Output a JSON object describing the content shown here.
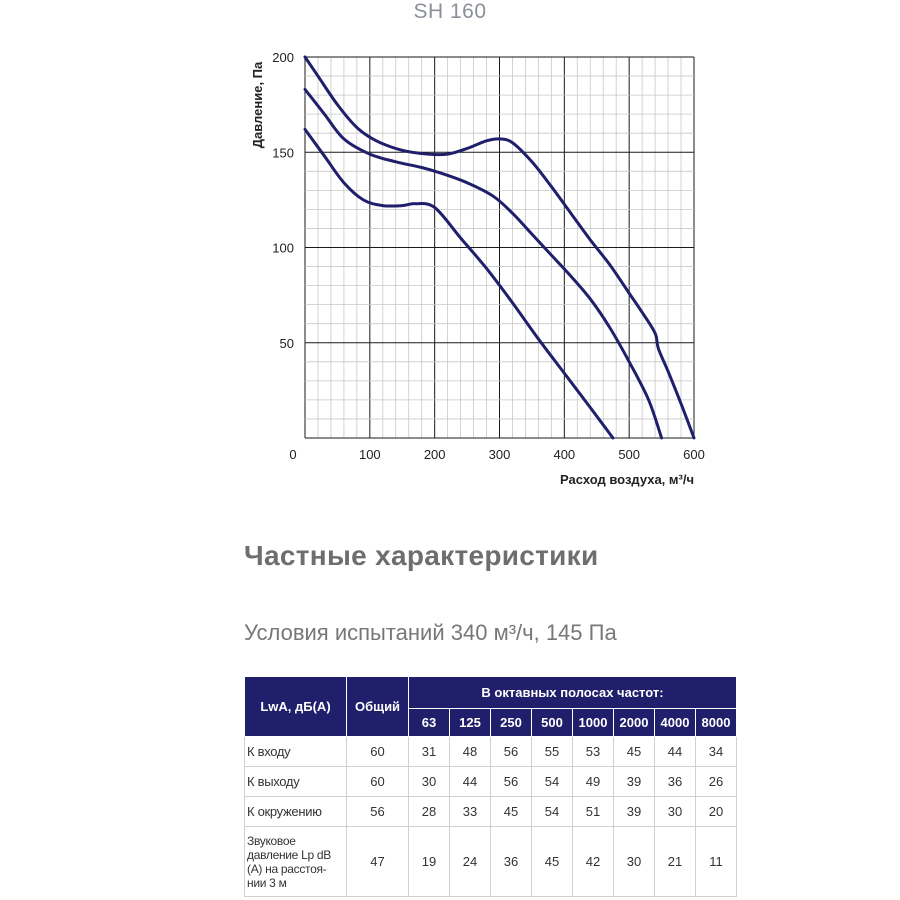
{
  "model_title": "SH 160",
  "chart_data": {
    "type": "line",
    "title": "",
    "xlabel": "Расход воздуха, м³/ч",
    "ylabel": "Давление, Па",
    "xlim": [
      0,
      600
    ],
    "ylim": [
      0,
      200
    ],
    "x_ticks": [
      "0",
      "100",
      "200",
      "300",
      "400",
      "500",
      "600"
    ],
    "y_ticks": [
      "50",
      "100",
      "150",
      "200"
    ],
    "grid": true,
    "line_color": "#1f1f6b",
    "series": [
      {
        "values": [
          [
            0,
            200
          ],
          [
            20,
            190
          ],
          [
            50,
            175
          ],
          [
            80,
            163
          ],
          [
            110,
            156
          ],
          [
            150,
            151
          ],
          [
            190,
            149
          ],
          [
            220,
            149
          ],
          [
            250,
            152
          ],
          [
            280,
            156
          ],
          [
            300,
            157
          ],
          [
            320,
            155
          ],
          [
            350,
            145
          ],
          [
            380,
            132
          ],
          [
            410,
            118
          ],
          [
            440,
            104
          ],
          [
            470,
            91
          ],
          [
            500,
            76
          ],
          [
            520,
            66
          ],
          [
            540,
            55
          ],
          [
            545,
            47
          ],
          [
            560,
            35
          ],
          [
            580,
            18
          ],
          [
            600,
            0
          ]
        ]
      },
      {
        "values": [
          [
            0,
            183
          ],
          [
            30,
            170
          ],
          [
            60,
            157
          ],
          [
            100,
            149
          ],
          [
            140,
            145
          ],
          [
            180,
            142
          ],
          [
            210,
            139
          ],
          [
            250,
            134
          ],
          [
            290,
            127
          ],
          [
            320,
            118
          ],
          [
            350,
            107
          ],
          [
            380,
            96
          ],
          [
            410,
            85
          ],
          [
            440,
            73
          ],
          [
            470,
            58
          ],
          [
            500,
            40
          ],
          [
            530,
            20
          ],
          [
            550,
            0
          ]
        ]
      },
      {
        "values": [
          [
            0,
            162
          ],
          [
            30,
            148
          ],
          [
            60,
            134
          ],
          [
            90,
            125
          ],
          [
            120,
            122
          ],
          [
            150,
            122
          ],
          [
            170,
            123
          ],
          [
            200,
            121
          ],
          [
            240,
            105
          ],
          [
            280,
            89
          ],
          [
            320,
            71
          ],
          [
            360,
            52
          ],
          [
            400,
            34
          ],
          [
            440,
            16
          ],
          [
            475,
            0
          ]
        ]
      }
    ]
  },
  "section_heading": "Частные характеристики",
  "test_conditions": "Условия испытаний 340 м³/ч, 145 Па",
  "table": {
    "header_label": "LwA, дБ(A)",
    "header_total": "Общий",
    "header_bands": "В октавных полосах частот:",
    "frequencies": [
      "63",
      "125",
      "250",
      "500",
      "1000",
      "2000",
      "4000",
      "8000"
    ],
    "rows": [
      {
        "label": "К входу",
        "total": "60",
        "values": [
          "31",
          "48",
          "56",
          "55",
          "53",
          "45",
          "44",
          "34"
        ]
      },
      {
        "label": "К выходу",
        "total": "60",
        "values": [
          "30",
          "44",
          "56",
          "54",
          "49",
          "39",
          "36",
          "26"
        ]
      },
      {
        "label": "К окружению",
        "total": "56",
        "values": [
          "28",
          "33",
          "45",
          "54",
          "51",
          "39",
          "30",
          "20"
        ]
      },
      {
        "label_lines": [
          "Звуковое",
          "давление Lp dB",
          "(A) на расстоя-",
          "нии 3 м"
        ],
        "total": "47",
        "values": [
          "19",
          "24",
          "36",
          "45",
          "42",
          "30",
          "21",
          "11"
        ]
      }
    ]
  }
}
